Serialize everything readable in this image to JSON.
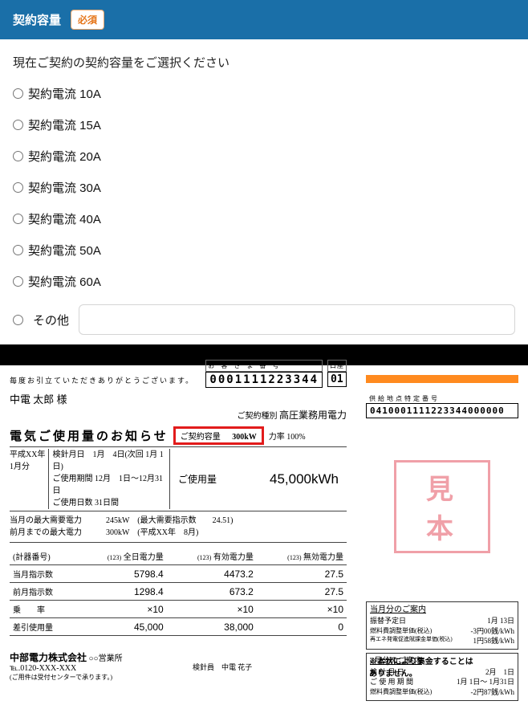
{
  "header": {
    "title": "契約容量",
    "required": "必須"
  },
  "form": {
    "instruction": "現在ご契約の契約容量をご選択ください",
    "options": [
      "契約電流 10A",
      "契約電流 15A",
      "契約電流 20A",
      "契約電流 30A",
      "契約電流 40A",
      "契約電流 50A",
      "契約電流 60A"
    ],
    "other_label": "その他",
    "other_placeholder": ""
  },
  "bill": {
    "thanks": "毎度お引立ていただきありがとうございます。",
    "customer_name": "中電 太郎 様",
    "customer_box_label": "お 客 さ ま 番 号",
    "customer_number": "0001111223344",
    "ledger_label": "口座",
    "ledger_number": "01",
    "contract_type_label": "ご契約種別",
    "contract_type": "高圧業務用電力",
    "title": "電気ご使用量のお知らせ",
    "capacity_label": "ご契約容量",
    "capacity_value": "300kW",
    "power_rate": "力率 100%",
    "period_header": "平成XX年\n1月分",
    "meter_date": "検針月日　1月　4日(次回 1月 1日)",
    "usage_period": "ご使用期間 12月　1日～12月31日",
    "usage_days": "ご使用日数 31日間",
    "usage_label": "ご使用量",
    "usage_value": "45,000kWh",
    "demand1": "当月の最大需要電力　　　245kW　(最大需要指示数　　24.51)",
    "demand2": "前月までの最大電力　　　300kW　(平成XX年　8月)",
    "table": {
      "h0": "(計器番号)",
      "h1": "全日電力量",
      "h2": "有効電力量",
      "h3": "無効電力量",
      "small": "(123)",
      "rows": [
        {
          "l": "当月指示数",
          "a": "5798.4",
          "b": "4473.2",
          "c": "27.5"
        },
        {
          "l": "前月指示数",
          "a": "1298.4",
          "b": "673.2",
          "c": "27.5"
        },
        {
          "l": "乗　　率",
          "a": "×10",
          "b": "×10",
          "c": "×10"
        },
        {
          "l": "差引使用量",
          "a": "45,000",
          "b": "38,000",
          "c": "0"
        }
      ]
    },
    "right": {
      "supply_label": "供給地点特定番号",
      "supply_number": "0410001111223344000000",
      "mihon": "見本",
      "box1": {
        "title": "当月分のご案内",
        "r1l": "振替予定日",
        "r1r": "1月 13日",
        "r2l": "燃料費調整単価(税込)",
        "r2r": "-3円00銭/kWh",
        "r3l": "再エネ発電促進賦課金単価(税込)",
        "r3r": "1円58銭/kWh"
      },
      "box2": {
        "title": "2月分のご案内",
        "r1l": "検 針 月 日",
        "r1r": "2月　1日",
        "r2l": "ご 使 用 期 間",
        "r2r": "1月 1日～ 1月31日",
        "r3l": "燃料費調整単価(税込)",
        "r3r": "-2円87銭/kWh"
      }
    },
    "footer": {
      "company": "中部電力株式会社",
      "office": "○○営業所",
      "tel": "℡.0120-XXX-XXX",
      "note_small": "(ご用件は受付センターで承ります。)",
      "center": "検針員　中電 花子",
      "disclaimer": "※本状により集金することは\nありません。"
    }
  }
}
